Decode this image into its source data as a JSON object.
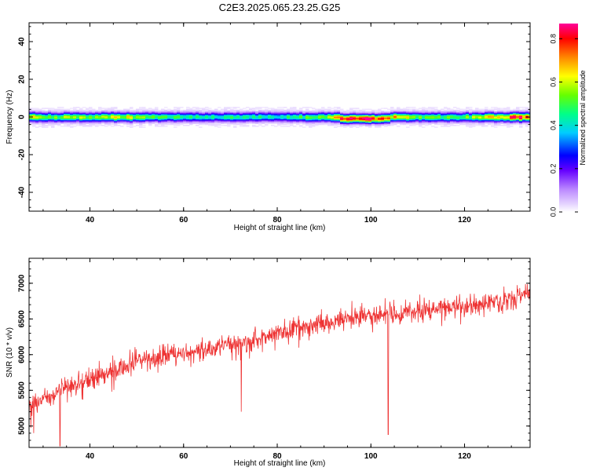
{
  "title": "C2E3.2025.065.23.25.G25",
  "chart_data": [
    {
      "type": "heatmap",
      "title": "C2E3.2025.065.23.25.G25",
      "xlabel": "Height of straight line (km)",
      "ylabel": "Frequency (Hz)",
      "xlim": [
        27,
        134
      ],
      "ylim": [
        -50,
        50
      ],
      "xticks": [
        40,
        60,
        80,
        100,
        120
      ],
      "yticks": [
        -40,
        -20,
        0,
        20,
        40
      ],
      "description": "Narrow band of high normalized spectral amplitude centered near 0 Hz (about -3 to +3 Hz) across all heights; peak values (about 0.8) near 95-103 km and 125-134 km.",
      "band_center_hz": 0,
      "band_halfwidth_hz": 3,
      "amplitude_profile": {
        "x": [
          27,
          30,
          40,
          47,
          55,
          65,
          75,
          85,
          90,
          95,
          100,
          103,
          110,
          120,
          125,
          130,
          134
        ],
        "peak": [
          0.7,
          0.5,
          0.55,
          0.6,
          0.45,
          0.45,
          0.4,
          0.45,
          0.55,
          0.8,
          0.8,
          0.7,
          0.5,
          0.5,
          0.6,
          0.75,
          0.8
        ]
      },
      "colorbar": {
        "label": "Normalized spectral amplitude",
        "ticks": [
          0.0,
          0.2,
          0.4,
          0.6,
          0.8
        ],
        "tick_labels": [
          "0.0",
          "0.2",
          "0.4",
          "0.6",
          "0.8"
        ],
        "range": [
          0,
          0.87
        ],
        "colors": [
          "#ffffff",
          "#ccaaff",
          "#6600ff",
          "#0000ff",
          "#00ffff",
          "#00ff66",
          "#ccff00",
          "#ffff00",
          "#ff8800",
          "#ff0000",
          "#ff00aa"
        ]
      }
    },
    {
      "type": "line",
      "xlabel": "Height of straight line (km)",
      "ylabel": "SNR (10 * v/v)",
      "xlim": [
        27,
        134
      ],
      "ylim": [
        4700,
        7350
      ],
      "xticks": [
        40,
        60,
        80,
        100,
        120
      ],
      "yticks": [
        5000,
        5500,
        6000,
        6500,
        7000
      ],
      "series_color": "#ee3333",
      "trend": {
        "x": [
          27,
          35,
          45,
          55,
          65,
          75,
          85,
          95,
          105,
          115,
          125,
          134
        ],
        "y": [
          5280,
          5550,
          5780,
          5980,
          6080,
          6200,
          6380,
          6520,
          6560,
          6650,
          6720,
          6850
        ]
      },
      "noise_amplitude": 220,
      "dips": [
        {
          "x": 28,
          "y": 4900
        },
        {
          "x": 33.6,
          "y": 4720
        },
        {
          "x": 72.3,
          "y": 5200
        },
        {
          "x": 103.7,
          "y": 4880
        }
      ]
    }
  ]
}
